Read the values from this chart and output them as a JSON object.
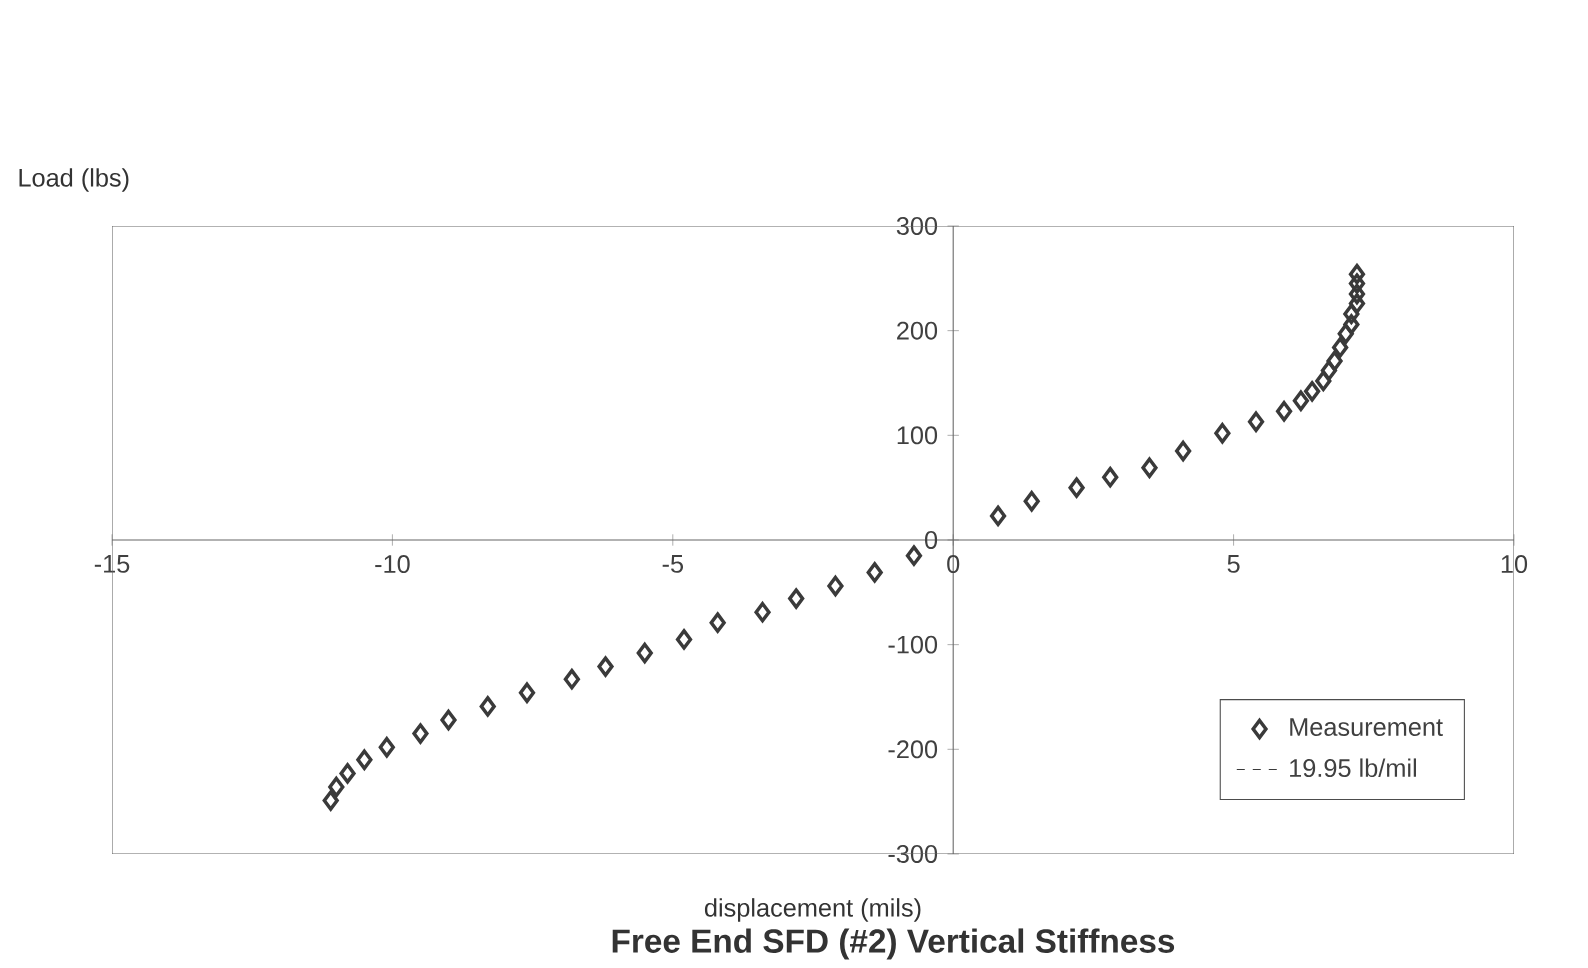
{
  "chart_data": {
    "type": "scatter",
    "title": "Free End SFD (#2)  Vertical Stiffness",
    "xlabel": "displacement (mils)",
    "ylabel": "Load (lbs)",
    "xlim": [
      -15,
      10
    ],
    "ylim": [
      -300,
      300
    ],
    "xticks": [
      -15,
      -10,
      -5,
      0,
      5,
      10
    ],
    "yticks": [
      -300,
      -200,
      -100,
      0,
      100,
      200,
      300
    ],
    "legend": "bottom right",
    "marker": "diamond",
    "series": [
      {
        "name": "Measurement",
        "color": "#3a3a3a",
        "x": [
          7.2,
          7.2,
          7.2,
          7.2,
          7.1,
          7.1,
          7.0,
          6.9,
          6.8,
          6.7,
          6.6,
          6.4,
          6.2,
          5.9,
          5.4,
          4.8,
          4.1,
          3.5,
          2.8,
          2.2,
          1.4,
          0.8,
          -0.7,
          -1.4,
          -2.1,
          -2.8,
          -3.4,
          -4.2,
          -4.8,
          -5.5,
          -6.2,
          -6.8,
          -7.6,
          -8.3,
          -9.0,
          -9.5,
          -10.1,
          -10.5,
          -10.8,
          -11.0,
          -11.1
        ],
        "values": [
          254,
          245,
          235,
          226,
          216,
          206,
          197,
          184,
          171,
          162,
          152,
          142,
          133,
          123,
          113,
          102,
          85,
          69,
          60,
          50,
          37,
          23,
          -15,
          -31,
          -44,
          -56,
          -69,
          -79,
          -95,
          -108,
          -121,
          -133,
          -146,
          -159,
          -172,
          -185,
          -198,
          -210,
          -223,
          -236,
          -249
        ]
      },
      {
        "name": "19.95 lb/mil",
        "type": "line",
        "line_style": "dashed",
        "color": "#3a3a3a"
      }
    ]
  }
}
